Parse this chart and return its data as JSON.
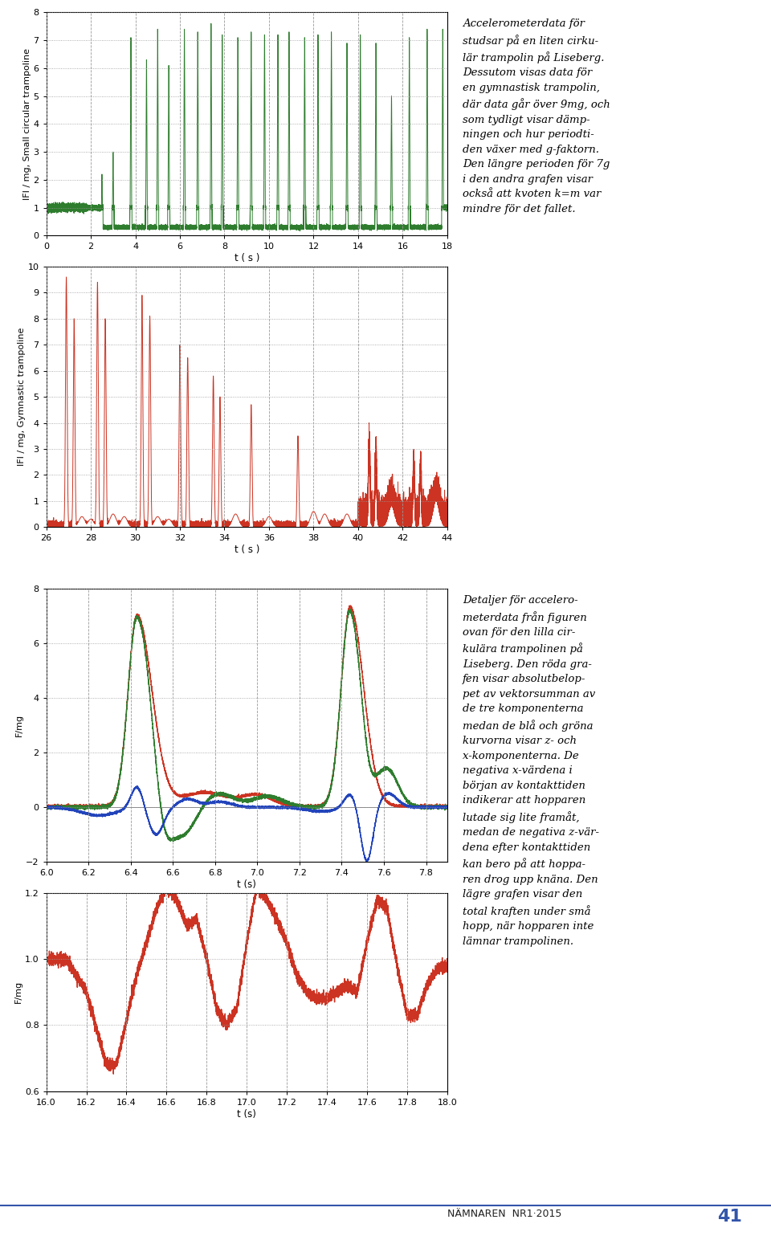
{
  "graph1": {
    "ylabel": "IFI / mg, Small circular trampoline",
    "xlabel": "t ( s )",
    "xlim": [
      0,
      18
    ],
    "ylim": [
      0,
      8
    ],
    "yticks": [
      0,
      1,
      2,
      3,
      4,
      5,
      6,
      7,
      8
    ],
    "xticks": [
      0,
      2,
      4,
      6,
      8,
      10,
      12,
      14,
      16,
      18
    ],
    "color": "#2e7d2e",
    "linewidth": 0.7
  },
  "graph2": {
    "ylabel": "IFI / mg, Gymnastic trampoline",
    "xlabel": "t ( s )",
    "xlim": [
      26,
      44
    ],
    "ylim": [
      0,
      10
    ],
    "yticks": [
      0,
      1,
      2,
      3,
      4,
      5,
      6,
      7,
      8,
      9,
      10
    ],
    "xticks": [
      26,
      28,
      30,
      32,
      34,
      36,
      38,
      40,
      42,
      44
    ],
    "color": "#cc3322",
    "linewidth": 0.7
  },
  "graph3": {
    "ylabel": "F/mg",
    "xlabel": "t (s)",
    "xlim": [
      6,
      7.9
    ],
    "ylim": [
      -2,
      8
    ],
    "yticks": [
      -2,
      0,
      2,
      4,
      6,
      8
    ],
    "xticks": [
      6.0,
      6.2,
      6.4,
      6.6,
      6.8,
      7.0,
      7.2,
      7.4,
      7.6,
      7.8
    ],
    "color_red": "#cc3322",
    "color_green": "#2e7d2e",
    "color_blue": "#2244bb",
    "linewidth": 1.0
  },
  "graph4": {
    "ylabel": "F/mg",
    "xlabel": "t (s)",
    "xlim": [
      16,
      18
    ],
    "ylim": [
      0.6,
      1.2
    ],
    "yticks": [
      0.6,
      0.8,
      1.0,
      1.2
    ],
    "xticks": [
      16.0,
      16.2,
      16.4,
      16.6,
      16.8,
      17.0,
      17.2,
      17.4,
      17.6,
      17.8,
      18.0
    ],
    "color": "#cc3322",
    "linewidth": 1.0
  },
  "text_right_top": "Accelerometerdata för\nstudsar på en liten cirku-\nlär trampolin på Liseberg.\nDessutom visas data för\nen gymnastisk trampolin,\ndär data går över 9mg, och\nsom tydligt visar dämp-\nningen och hur periodti-\nden växer med g-faktorn.\nDen längre perioden för 7g\ni den andra grafen visar\nockså att kvoten k=m var\nmindre för det fallet.",
  "text_right_bottom": "Detaljer för accelero-\nmeterdata från figuren\novan för den lilla cir-\nkulära trampolinen på\nLiseberg. Den röda gra-\nfen visar absolutbelop-\npet av vektorsumman av\nde tre komponenterna\nmedan de blå och gröna\nkurvorna visar z- och\nx-komponenterna. De\nnegativa x-värdena i\nbörjan av kontakttiden\nindikerar att hopparen\nlutade sig lite framåt,\nmedan de negativa z-vär-\ndena efter kontakttiden\nkan bero på att hoppa-\nren drog upp knäna. Den\nlägre grafen visar den\ntotal kraften under små\nhopp, när hopparen inte\nlämnar trampolinen.",
  "background_color": "#ffffff",
  "grid_color": "#999999",
  "grid_linestyle": ":",
  "grid_linewidth": 0.6,
  "vgrid_linestyle": "--",
  "vgrid_linewidth": 0.6,
  "footer_text": "NÄMNAREN  NR1·2015",
  "footer_num": "41"
}
